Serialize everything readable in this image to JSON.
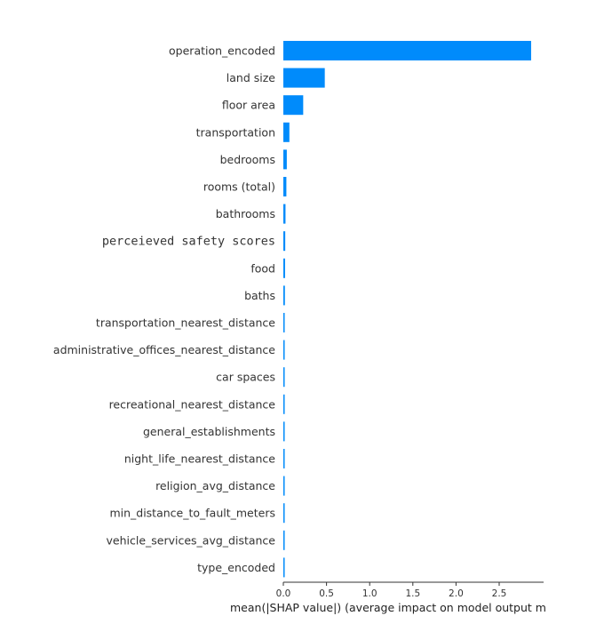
{
  "chart_data": {
    "type": "bar",
    "orientation": "horizontal",
    "categories": [
      "operation_encoded",
      "land size",
      "floor area",
      "transportation",
      "bedrooms",
      "rooms (total)",
      "bathrooms",
      "perceieved safety scores",
      "food",
      "baths",
      "transportation_nearest_distance",
      "administrative_offices_nearest_distance",
      "car spaces",
      "recreational_nearest_distance",
      "general_establishments",
      "night_life_nearest_distance",
      "religion_avg_distance",
      "min_distance_to_fault_meters",
      "vehicle_services_avg_distance",
      "type_encoded"
    ],
    "values": [
      2.87,
      0.48,
      0.23,
      0.07,
      0.04,
      0.035,
      0.025,
      0.022,
      0.02,
      0.018,
      0.012,
      0.011,
      0.01,
      0.009,
      0.008,
      0.007,
      0.007,
      0.006,
      0.006,
      0.005
    ],
    "xlabel": "mean(|SHAP value|) (average impact on model output m",
    "xticks": [
      "0.0",
      "0.5",
      "1.0",
      "1.5",
      "2.0",
      "2.5"
    ],
    "xlim": [
      0,
      2.95
    ],
    "bar_color": "#008bfb",
    "grid": false
  }
}
